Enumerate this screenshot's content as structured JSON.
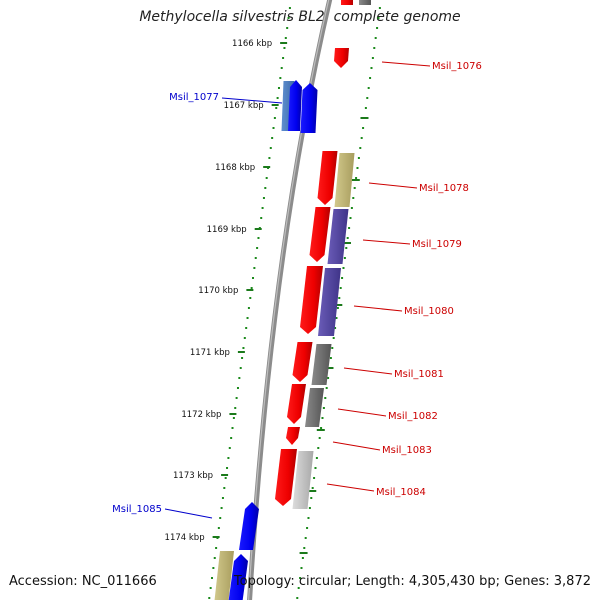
{
  "title": "Methylocella silvestris BL2, complete genome",
  "accession": "Accession: NC_011666",
  "summary": "Topology: circular; Length: 4,305,430 bp; Genes: 3,872",
  "ticks": [
    "1166 kbp",
    "1167 kbp",
    "1168 kbp",
    "1169 kbp",
    "1170 kbp",
    "1171 kbp",
    "1172 kbp",
    "1173 kbp",
    "1174 kbp"
  ],
  "genes": [
    {
      "id": "Msil_1076",
      "strand": "forward",
      "color": "#cc0000"
    },
    {
      "id": "Msil_1077",
      "strand": "reverse",
      "color": "#0000cc"
    },
    {
      "id": "Msil_1078",
      "strand": "forward",
      "color": "#cc0000"
    },
    {
      "id": "Msil_1079",
      "strand": "forward",
      "color": "#cc0000"
    },
    {
      "id": "Msil_1080",
      "strand": "forward",
      "color": "#cc0000"
    },
    {
      "id": "Msil_1081",
      "strand": "forward",
      "color": "#cc0000"
    },
    {
      "id": "Msil_1082",
      "strand": "forward",
      "color": "#cc0000"
    },
    {
      "id": "Msil_1083",
      "strand": "forward",
      "color": "#cc0000"
    },
    {
      "id": "Msil_1084",
      "strand": "forward",
      "color": "#cc0000"
    },
    {
      "id": "Msil_1085",
      "strand": "reverse",
      "color": "#0000cc"
    }
  ]
}
